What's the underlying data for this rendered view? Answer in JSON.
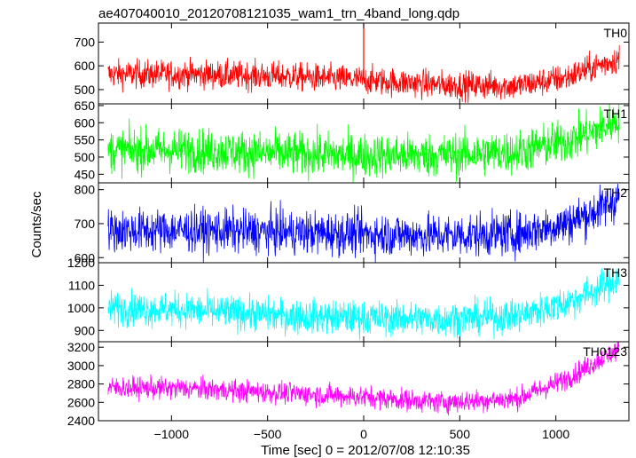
{
  "chart_data": {
    "type": "line",
    "title": "ae407040010_20120708121035_wam1_trn_4band_long.qdp",
    "xlabel": "Time [sec] 0 = 2012/07/08 12:10:35",
    "ylabel": "Counts/sec",
    "xlim": [
      -1380,
      1380
    ],
    "xticks": [
      -1000,
      -500,
      0,
      500,
      1000
    ],
    "xtick_labels": [
      "−1000",
      "−500",
      "0",
      "500",
      "1000"
    ],
    "grid": false,
    "panels": [
      {
        "name": "TH0",
        "color": "#ff0000",
        "ylim": [
          440,
          780
        ],
        "yticks": [
          500,
          600,
          700
        ],
        "trend": {
          "x": [
            -1330,
            -900,
            -400,
            0,
            400,
            800,
            1050,
            1200,
            1330
          ],
          "y": [
            565,
            565,
            555,
            540,
            520,
            515,
            550,
            595,
            630
          ]
        },
        "noise": 30,
        "spike": {
          "x": 0,
          "y": 780
        }
      },
      {
        "name": "TH1",
        "color": "#00ff00",
        "ylim": [
          425,
          655
        ],
        "yticks": [
          450,
          500,
          550,
          600,
          650
        ],
        "trend": {
          "x": [
            -1330,
            -900,
            -400,
            0,
            400,
            800,
            1050,
            1200,
            1330
          ],
          "y": [
            520,
            520,
            510,
            505,
            505,
            515,
            545,
            575,
            610
          ]
        },
        "noise": 32
      },
      {
        "name": "TH2",
        "color": "#0000ff",
        "ylim": [
          585,
          820
        ],
        "yticks": [
          600,
          700,
          800
        ],
        "trend": {
          "x": [
            -1330,
            -900,
            -400,
            0,
            400,
            800,
            1050,
            1200,
            1330
          ],
          "y": [
            680,
            680,
            675,
            670,
            665,
            670,
            700,
            735,
            775
          ]
        },
        "noise": 32
      },
      {
        "name": "TH3",
        "color": "#00ffff",
        "ylim": [
          850,
          1200
        ],
        "yticks": [
          900,
          1000,
          1100,
          1200
        ],
        "trend": {
          "x": [
            -1330,
            -900,
            -400,
            0,
            400,
            800,
            1050,
            1200,
            1330
          ],
          "y": [
            1000,
            990,
            965,
            955,
            950,
            965,
            1020,
            1075,
            1130
          ]
        },
        "noise": 38
      },
      {
        "name": "TH0123",
        "color": "#ff00ff",
        "ylim": [
          2400,
          3260
        ],
        "yticks": [
          2400,
          2600,
          2800,
          3000,
          3200
        ],
        "trend": {
          "x": [
            -1330,
            -900,
            -400,
            0,
            400,
            800,
            1050,
            1200,
            1330
          ],
          "y": [
            2760,
            2750,
            2700,
            2660,
            2600,
            2640,
            2850,
            3030,
            3180
          ]
        },
        "noise": 60
      }
    ]
  }
}
